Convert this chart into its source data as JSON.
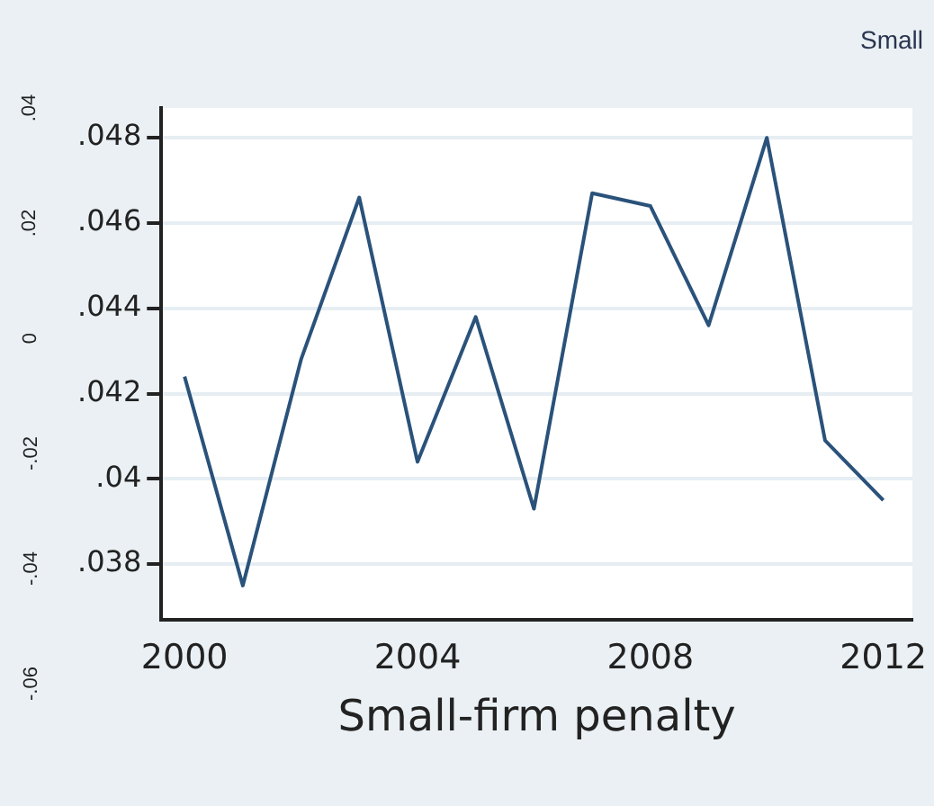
{
  "chart_data": {
    "type": "line",
    "xlabel": "Small-firm penalty",
    "x": [
      2000,
      2001,
      2002,
      2003,
      2004,
      2005,
      2006,
      2007,
      2008,
      2009,
      2010,
      2011,
      2012
    ],
    "series": [
      {
        "color": "#2a527a",
        "values": [
          0.0424,
          0.0375,
          0.0428,
          0.0466,
          0.0404,
          0.0438,
          0.0393,
          0.0467,
          0.0464,
          0.0436,
          0.048,
          0.0409,
          0.0395
        ]
      }
    ],
    "xlim": [
      1999.6,
      2012.5
    ],
    "xticks": [
      2000,
      2004,
      2008,
      2012
    ],
    "ylim": [
      0.0367,
      0.0487
    ],
    "yticks": [
      {
        "value": 0.038,
        "label": ".038"
      },
      {
        "value": 0.04,
        "label": ".04"
      },
      {
        "value": 0.042,
        "label": ".042"
      },
      {
        "value": 0.044,
        "label": ".044"
      },
      {
        "value": 0.046,
        "label": ".046"
      },
      {
        "value": 0.048,
        "label": ".048"
      }
    ],
    "grid": "y",
    "legend": false,
    "marker": "none",
    "line_style": "solid",
    "annotations": [
      ".04",
      ".02",
      "0",
      "-.02",
      "-.04",
      "-.06",
      "Small"
    ]
  }
}
